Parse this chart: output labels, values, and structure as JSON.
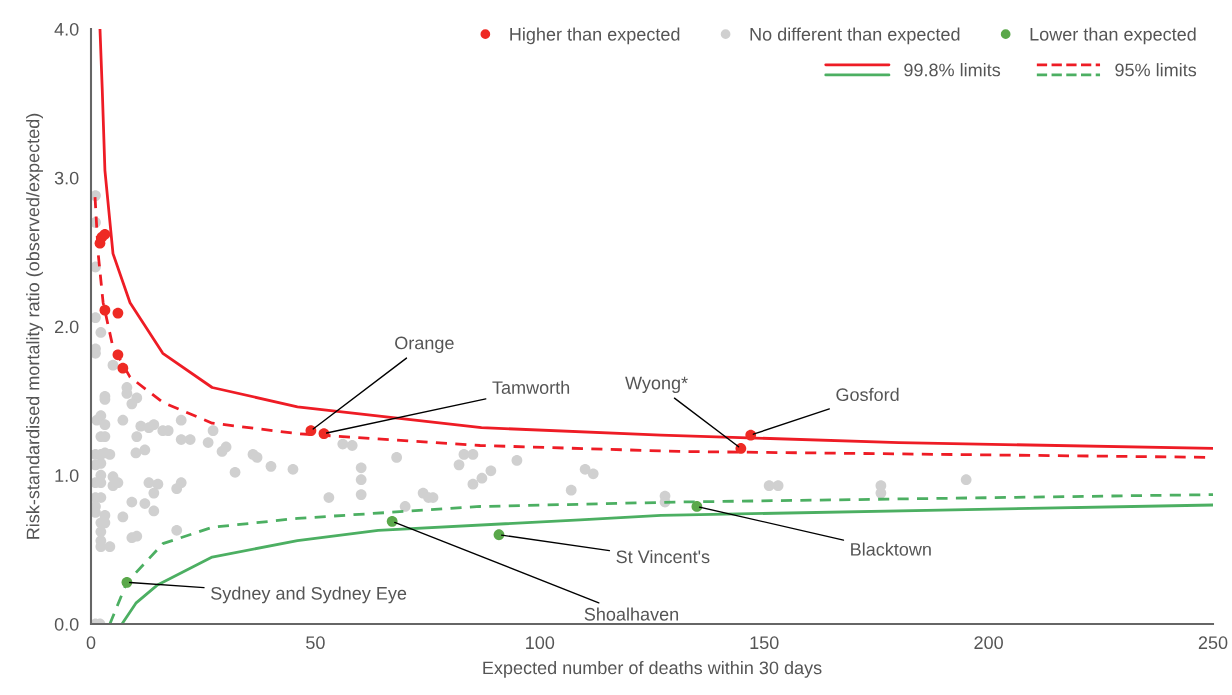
{
  "chart_data": {
    "type": "scatter",
    "xlabel": "Expected number of deaths within 30 days",
    "ylabel": "Risk-standardised mortality ratio (observed/expected)",
    "xlim": [
      0,
      250
    ],
    "xticks": [
      0,
      50,
      100,
      150,
      200,
      250
    ],
    "ylim": [
      0,
      4.0
    ],
    "yticks": [
      {
        "value": 0,
        "label": "0.0"
      },
      {
        "value": 1,
        "label": "1.0"
      },
      {
        "value": 2,
        "label": "2.0"
      },
      {
        "value": 3,
        "label": "3.0"
      },
      {
        "value": 4,
        "label": "4.0"
      }
    ],
    "grid": false,
    "legend": "top right",
    "marker": "circle",
    "series": [
      {
        "name": "Higher than expected",
        "color": "#ee2a24",
        "x": [
          2.0,
          2.4,
          3.1,
          3.1,
          6.0,
          6.0,
          7.1,
          49.0,
          51.9,
          144.8,
          147.0
        ],
        "values": [
          2.56,
          2.6,
          2.62,
          2.11,
          2.09,
          1.81,
          1.72,
          1.3,
          1.28,
          1.18,
          1.27
        ]
      },
      {
        "name": "No different than expected",
        "color": "#d0d0d0",
        "x": [
          1.0,
          1.0,
          1.0,
          1.0,
          2.2,
          1.0,
          1.0,
          4.9,
          8.0,
          8.0,
          3.1,
          3.1,
          10.2,
          9.1,
          1.3,
          2.2,
          3.1,
          7.1,
          11.1,
          12.9,
          14.0,
          16.0,
          17.2,
          20.1,
          27.2,
          10.2,
          2.2,
          3.1,
          20.1,
          22.1,
          26.1,
          30.1,
          29.2,
          12.0,
          10.0,
          1.0,
          2.2,
          3.1,
          4.2,
          1.0,
          2.2,
          36.1,
          37.0,
          40.1,
          45.0,
          32.1,
          2.2,
          1.0,
          2.2,
          4.9,
          4.9,
          6.0,
          12.9,
          14.9,
          20.1,
          19.1,
          14.0,
          1.0,
          2.2,
          9.1,
          12.0,
          1.0,
          1.0,
          3.1,
          14.0,
          7.1,
          2.2,
          3.1,
          2.2,
          19.1,
          2.2,
          9.1,
          10.2,
          2.2,
          4.2,
          1.0,
          2.0,
          56.1,
          58.2,
          68.1,
          60.2,
          60.2,
          60.2,
          53.0,
          74.0,
          75.2,
          76.2,
          70.0,
          83.1,
          85.1,
          82.0,
          89.1,
          87.1,
          85.1,
          94.9,
          110.1,
          111.9,
          107.0,
          127.9,
          127.9,
          151.1,
          153.1,
          176.0,
          176.0,
          195.0
        ],
        "values": [
          2.88,
          2.7,
          2.4,
          2.06,
          1.96,
          1.85,
          1.82,
          1.74,
          1.59,
          1.55,
          1.53,
          1.51,
          1.52,
          1.48,
          1.37,
          1.4,
          1.34,
          1.37,
          1.33,
          1.32,
          1.34,
          1.3,
          1.3,
          1.37,
          1.3,
          1.26,
          1.26,
          1.26,
          1.24,
          1.24,
          1.22,
          1.19,
          1.16,
          1.17,
          1.15,
          1.14,
          1.14,
          1.15,
          1.14,
          1.07,
          1.08,
          1.14,
          1.12,
          1.06,
          1.04,
          1.02,
          1.0,
          0.95,
          0.95,
          0.99,
          0.93,
          0.95,
          0.95,
          0.94,
          0.95,
          0.91,
          0.88,
          0.85,
          0.85,
          0.82,
          0.81,
          0.79,
          0.75,
          0.73,
          0.76,
          0.72,
          0.68,
          0.68,
          0.62,
          0.63,
          0.56,
          0.58,
          0.59,
          0.52,
          0.52,
          0.0,
          0.0,
          1.21,
          1.2,
          1.12,
          1.05,
          0.97,
          0.87,
          0.85,
          0.88,
          0.85,
          0.85,
          0.79,
          1.14,
          1.14,
          1.07,
          1.03,
          0.98,
          0.94,
          1.1,
          1.04,
          1.01,
          0.9,
          0.86,
          0.82,
          0.93,
          0.93,
          0.93,
          0.88,
          0.97
        ]
      },
      {
        "name": "Lower than expected",
        "color": "#5aa84a",
        "x": [
          8.0,
          67.1,
          90.9,
          135.0
        ],
        "values": [
          0.28,
          0.69,
          0.6,
          0.79
        ]
      },
      {
        "name": "99.8% limits",
        "type": "line",
        "marker": "none",
        "line_style": "solid",
        "color": "#ee1c25",
        "x": [
          2.0,
          2.5,
          3.1,
          4.9,
          8.7,
          16,
          27,
          46,
          87,
          127,
          180,
          250
        ],
        "values": [
          4.0,
          3.6,
          3.05,
          2.49,
          2.16,
          1.82,
          1.59,
          1.46,
          1.32,
          1.27,
          1.22,
          1.18
        ]
      },
      {
        "type": "line",
        "marker": "none",
        "line_style": "solid",
        "color": "#4caf62",
        "x": [
          6.9,
          10,
          14.7,
          27,
          46,
          64,
          109,
          127,
          250
        ],
        "values": [
          0.0,
          0.14,
          0.26,
          0.45,
          0.56,
          0.63,
          0.7,
          0.73,
          0.8
        ]
      },
      {
        "name": "95% limits",
        "type": "line",
        "marker": "none",
        "line_style": "dashed",
        "color": "#ee1c25",
        "x": [
          0.9,
          1.6,
          2.7,
          4.9,
          8.7,
          16,
          27,
          46,
          86.7,
          131,
          250
        ],
        "values": [
          2.87,
          2.49,
          2.16,
          1.86,
          1.66,
          1.49,
          1.35,
          1.28,
          1.2,
          1.16,
          1.12
        ]
      },
      {
        "type": "line",
        "marker": "none",
        "line_style": "dashed",
        "color": "#4caf62",
        "x": [
          4.2,
          8,
          16,
          27,
          46,
          86.7,
          131,
          250
        ],
        "values": [
          0.0,
          0.28,
          0.54,
          0.65,
          0.71,
          0.79,
          0.82,
          0.87
        ]
      }
    ],
    "annotations": [
      {
        "text": "Orange",
        "x": 49.0,
        "y": 1.3
      },
      {
        "text": "Tamworth",
        "x": 51.9,
        "y": 1.28
      },
      {
        "text": "Wyong*",
        "x": 144.8,
        "y": 1.18
      },
      {
        "text": "Gosford",
        "x": 147.0,
        "y": 1.27
      },
      {
        "text": "Sydney and Sydney Eye",
        "x": 8.0,
        "y": 0.28
      },
      {
        "text": "Shoalhaven",
        "x": 67.1,
        "y": 0.69
      },
      {
        "text": "St Vincent's",
        "x": 90.9,
        "y": 0.6
      },
      {
        "text": "Blacktown",
        "x": 135.0,
        "y": 0.79
      }
    ]
  }
}
